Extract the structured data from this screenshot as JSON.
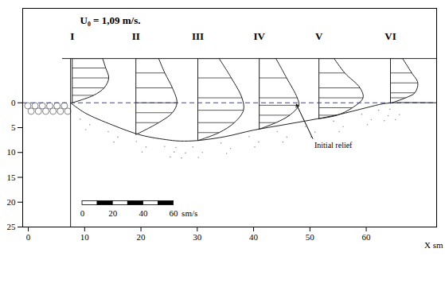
{
  "chart_data": {
    "type": "scour_profile",
    "title": "U₀ = 1,09 m/s.",
    "x_label": "X sm",
    "xlim": [
      -1,
      72.5
    ],
    "xticks": [
      0,
      10,
      20,
      30,
      40,
      50,
      60
    ],
    "ylim": [
      -19,
      25
    ],
    "yticks": [
      0,
      5,
      10,
      15,
      20,
      25
    ],
    "water_surface": -8.9,
    "initial_bed": 0,
    "annotation": "Initial relief",
    "bed": {
      "x": [
        7.5,
        10,
        15,
        20,
        25,
        27,
        30,
        35,
        40,
        45,
        50,
        55,
        60,
        63,
        65,
        72.5
      ],
      "depth": [
        0,
        2,
        4.5,
        6.5,
        7.5,
        7.7,
        7.6,
        6.8,
        5.5,
        4.5,
        3.5,
        2.4,
        1,
        0.2,
        0,
        0
      ]
    },
    "stations": [
      {
        "label": "I",
        "x": 7.8,
        "z": [
          -8.9,
          -7,
          -5,
          -3,
          -1.5,
          0
        ],
        "u": [
          20,
          22,
          24,
          21,
          14,
          0
        ]
      },
      {
        "label": "II",
        "x": 19.1,
        "z": [
          -8.9,
          -6,
          -3,
          0,
          2,
          4,
          6.4
        ],
        "u": [
          15,
          19,
          24,
          27,
          24,
          15,
          0
        ]
      },
      {
        "label": "III",
        "x": 30.1,
        "z": [
          -8.9,
          -5,
          -1,
          1.5,
          4,
          6,
          7.6
        ],
        "u": [
          14,
          22,
          29,
          30,
          24,
          14,
          0
        ]
      },
      {
        "label": "IV",
        "x": 41,
        "z": [
          -8.9,
          -5,
          -1,
          0.5,
          2.5,
          4,
          5.3
        ],
        "u": [
          11,
          18,
          25,
          26,
          20,
          11,
          0
        ]
      },
      {
        "label": "V",
        "x": 51.6,
        "z": [
          -8.9,
          -6,
          -3,
          -1,
          1,
          2.5,
          3.2
        ],
        "u": [
          10,
          17,
          27,
          29,
          22,
          12,
          0
        ]
      },
      {
        "label": "VI",
        "x": 64.3,
        "z": [
          -8.9,
          -6,
          -4,
          -2,
          -1,
          0.1
        ],
        "u": [
          8,
          14,
          18,
          16,
          10,
          0
        ]
      }
    ],
    "velocity_scale": {
      "ticks": [
        0,
        20,
        40,
        60
      ],
      "step": 10,
      "unit": "sm/s"
    }
  }
}
